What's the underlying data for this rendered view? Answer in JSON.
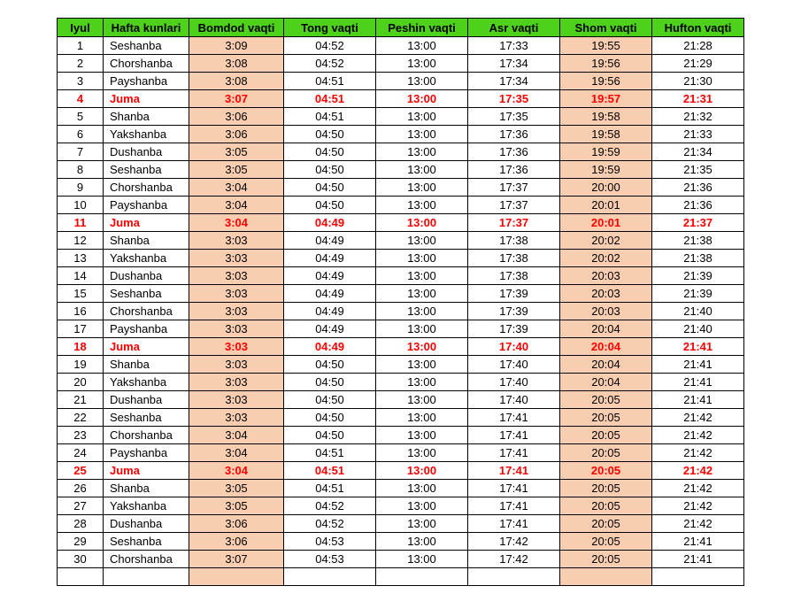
{
  "colors": {
    "header_bg": "#4ed11a",
    "highlight_col_bg": "#f8cdb0",
    "friday_text": "#ff0000"
  },
  "table": {
    "headers": [
      "Iyul",
      "Hafta kunlari",
      "Bomdod vaqti",
      "Tong vaqti",
      "Peshin vaqti",
      "Asr vaqti",
      "Shom vaqti",
      "Hufton vaqti"
    ],
    "highlight_day": "Juma",
    "rows": [
      [
        "1",
        "Seshanba",
        "3:09",
        "04:52",
        "13:00",
        "17:33",
        "19:55",
        "21:28"
      ],
      [
        "2",
        "Chorshanba",
        "3:08",
        "04:52",
        "13:00",
        "17:34",
        "19:56",
        "21:29"
      ],
      [
        "3",
        "Payshanba",
        "3:08",
        "04:51",
        "13:00",
        "17:34",
        "19:56",
        "21:30"
      ],
      [
        "4",
        "Juma",
        "3:07",
        "04:51",
        "13:00",
        "17:35",
        "19:57",
        "21:31"
      ],
      [
        "5",
        "Shanba",
        "3:06",
        "04:51",
        "13:00",
        "17:35",
        "19:58",
        "21:32"
      ],
      [
        "6",
        "Yakshanba",
        "3:06",
        "04:50",
        "13:00",
        "17:36",
        "19:58",
        "21:33"
      ],
      [
        "7",
        "Dushanba",
        "3:05",
        "04:50",
        "13:00",
        "17:36",
        "19:59",
        "21:34"
      ],
      [
        "8",
        "Seshanba",
        "3:05",
        "04:50",
        "13:00",
        "17:36",
        "19:59",
        "21:35"
      ],
      [
        "9",
        "Chorshanba",
        "3:04",
        "04:50",
        "13:00",
        "17:37",
        "20:00",
        "21:36"
      ],
      [
        "10",
        "Payshanba",
        "3:04",
        "04:50",
        "13:00",
        "17:37",
        "20:01",
        "21:36"
      ],
      [
        "11",
        "Juma",
        "3:04",
        "04:49",
        "13:00",
        "17:37",
        "20:01",
        "21:37"
      ],
      [
        "12",
        "Shanba",
        "3:03",
        "04:49",
        "13:00",
        "17:38",
        "20:02",
        "21:38"
      ],
      [
        "13",
        "Yakshanba",
        "3:03",
        "04:49",
        "13:00",
        "17:38",
        "20:02",
        "21:38"
      ],
      [
        "14",
        "Dushanba",
        "3:03",
        "04:49",
        "13:00",
        "17:38",
        "20:03",
        "21:39"
      ],
      [
        "15",
        "Seshanba",
        "3:03",
        "04:49",
        "13:00",
        "17:39",
        "20:03",
        "21:39"
      ],
      [
        "16",
        "Chorshanba",
        "3:03",
        "04:49",
        "13:00",
        "17:39",
        "20:03",
        "21:40"
      ],
      [
        "17",
        "Payshanba",
        "3:03",
        "04:49",
        "13:00",
        "17:39",
        "20:04",
        "21:40"
      ],
      [
        "18",
        "Juma",
        "3:03",
        "04:49",
        "13:00",
        "17:40",
        "20:04",
        "21:41"
      ],
      [
        "19",
        "Shanba",
        "3:03",
        "04:50",
        "13:00",
        "17:40",
        "20:04",
        "21:41"
      ],
      [
        "20",
        "Yakshanba",
        "3:03",
        "04:50",
        "13:00",
        "17:40",
        "20:04",
        "21:41"
      ],
      [
        "21",
        "Dushanba",
        "3:03",
        "04:50",
        "13:00",
        "17:40",
        "20:05",
        "21:41"
      ],
      [
        "22",
        "Seshanba",
        "3:03",
        "04:50",
        "13:00",
        "17:41",
        "20:05",
        "21:42"
      ],
      [
        "23",
        "Chorshanba",
        "3:04",
        "04:50",
        "13:00",
        "17:41",
        "20:05",
        "21:42"
      ],
      [
        "24",
        "Payshanba",
        "3:04",
        "04:51",
        "13:00",
        "17:41",
        "20:05",
        "21:42"
      ],
      [
        "25",
        "Juma",
        "3:04",
        "04:51",
        "13:00",
        "17:41",
        "20:05",
        "21:42"
      ],
      [
        "26",
        "Shanba",
        "3:05",
        "04:51",
        "13:00",
        "17:41",
        "20:05",
        "21:42"
      ],
      [
        "27",
        "Yakshanba",
        "3:05",
        "04:52",
        "13:00",
        "17:41",
        "20:05",
        "21:42"
      ],
      [
        "28",
        "Dushanba",
        "3:06",
        "04:52",
        "13:00",
        "17:41",
        "20:05",
        "21:42"
      ],
      [
        "29",
        "Seshanba",
        "3:06",
        "04:53",
        "13:00",
        "17:42",
        "20:05",
        "21:41"
      ],
      [
        "30",
        "Chorshanba",
        "3:07",
        "04:53",
        "13:00",
        "17:42",
        "20:05",
        "21:41"
      ],
      [
        "",
        "",
        "",
        "",
        "",
        "",
        "",
        ""
      ]
    ]
  }
}
